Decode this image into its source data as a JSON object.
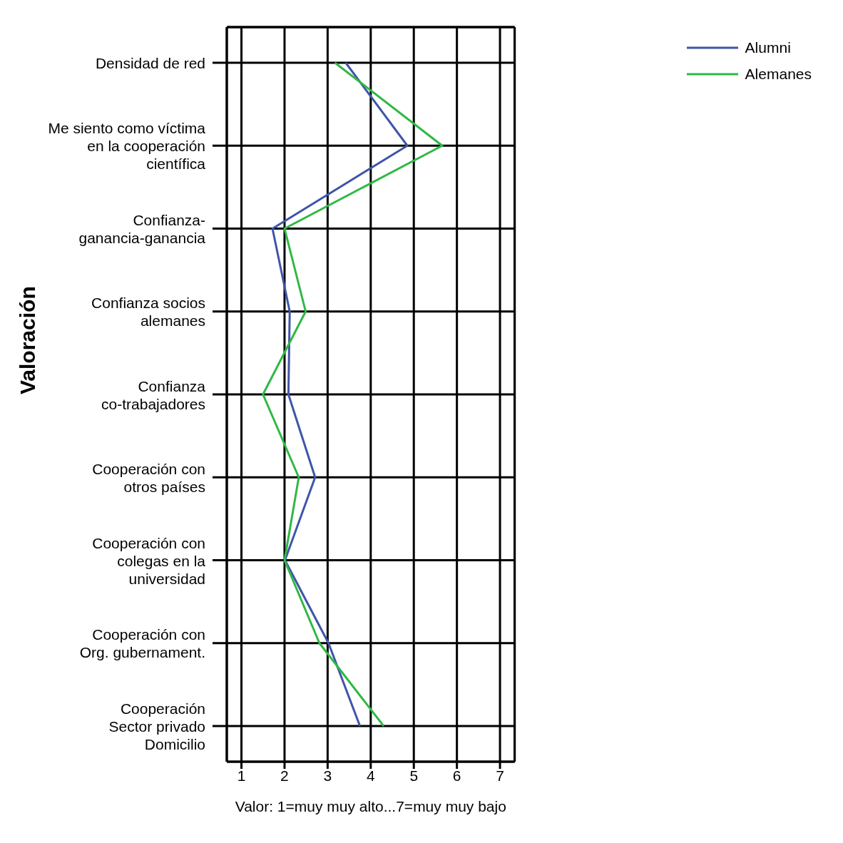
{
  "chart_data": {
    "type": "line",
    "orientation": "horizontal",
    "xlabel": "Valor: 1=muy muy alto...7=muy muy bajo",
    "ylabel": "Valoración",
    "categories": [
      "Densidad de red",
      "Me siento como víctima\nen la cooperación\ncientífica",
      "Confianza-\nganancia-ganancia",
      "Confianza socios\nalemanes",
      "Confianza\nco-trabajadores",
      "Cooperación con\notros países",
      "Cooperación con\ncolegas en la\nuniversidad",
      "Cooperación con\nOrg. gubernament.",
      "Cooperación\nSector privado\nDomicilio"
    ],
    "series": [
      {
        "name": "Alumni",
        "color": "#3f55a8",
        "values": [
          3.42,
          4.85,
          1.72,
          2.12,
          2.09,
          2.71,
          2.01,
          3.02,
          3.75
        ]
      },
      {
        "name": "Alemanes",
        "color": "#2fb844",
        "values": [
          3.17,
          5.66,
          2.0,
          2.49,
          1.5,
          2.33,
          2.0,
          2.81,
          4.3
        ]
      }
    ],
    "xlim": [
      0.66,
      7.34
    ],
    "xticks": [
      1,
      2,
      3,
      4,
      5,
      6,
      7
    ],
    "grid": true,
    "legend": "top right",
    "marker": "none",
    "line_style": "solid"
  }
}
